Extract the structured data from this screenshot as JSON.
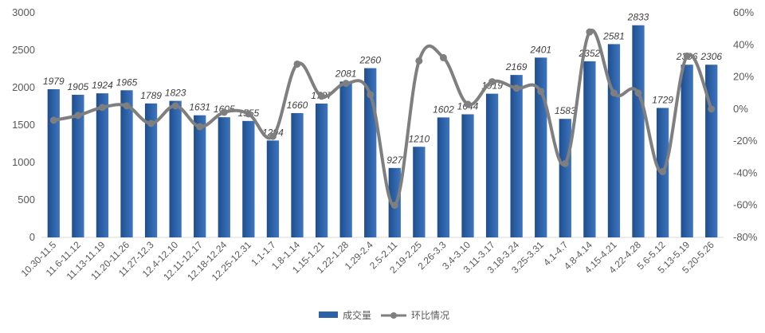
{
  "chart_data": {
    "type": "bar",
    "categories": [
      "10.30-11.5",
      "11.6-11.12",
      "11.13-11.19",
      "11.20-11.26",
      "11.27-12.3",
      "12.4-12.10",
      "12.11-12.17",
      "12.18-12.24",
      "12.25-12.31",
      "1.1-1.7",
      "1.8-1.14",
      "1.15-1.21",
      "1.22-1.28",
      "1.29-2.4",
      "2.5-2.11",
      "2.19-2.25",
      "2.26-3.3",
      "3.4-3.10",
      "3.11-3.17",
      "3.18-3.24",
      "3.25-3.31",
      "4.1-4.7",
      "4.8-4.14",
      "4.15-4.21",
      "4.22-4.28",
      "5.6-5.12",
      "5.13-5.19",
      "5.20-5.26"
    ],
    "series": [
      {
        "name": "成交量",
        "type": "bar",
        "axis": "left",
        "color": "#2E62A8",
        "values": [
          1979,
          1905,
          1924,
          1965,
          1789,
          1823,
          1631,
          1605,
          1555,
          1294,
          1660,
          1787,
          2081,
          2260,
          927,
          1210,
          1602,
          1644,
          1919,
          2169,
          2401,
          1583,
          2352,
          2581,
          2833,
          1729,
          2306,
          2306
        ],
        "data_labels": [
          "1979",
          "1905",
          "1924",
          "1965",
          "1789",
          "1823",
          "1631",
          "1605",
          "1555",
          "1294",
          "1660",
          "1787",
          "2081",
          "2260",
          "927",
          "1210",
          "1602",
          "1644",
          "1919",
          "2169",
          "2401",
          "1583",
          "2352",
          "2581",
          "2833",
          "1729",
          "2306",
          "2306"
        ]
      },
      {
        "name": "环比情况",
        "type": "line",
        "axis": "right",
        "color": "#7F7F7F",
        "values": [
          -7,
          -4,
          1,
          2,
          -9,
          2,
          -11,
          -2,
          -3,
          -17,
          28,
          8,
          16,
          9,
          -60,
          30,
          32,
          3,
          17,
          13,
          11,
          -34,
          48,
          10,
          10,
          -39,
          33,
          0
        ]
      }
    ],
    "y_left": {
      "min": 0,
      "max": 3000,
      "ticks": [
        "0",
        "500",
        "1000",
        "1500",
        "2000",
        "2500",
        "3000"
      ]
    },
    "y_right": {
      "min": -80,
      "max": 60,
      "ticks": [
        "-80%",
        "-60%",
        "-40%",
        "-20%",
        "0%",
        "20%",
        "40%",
        "60%"
      ]
    },
    "grid": false,
    "legend": {
      "placement": "bottom",
      "items": [
        "成交量",
        "环比情况"
      ]
    }
  }
}
